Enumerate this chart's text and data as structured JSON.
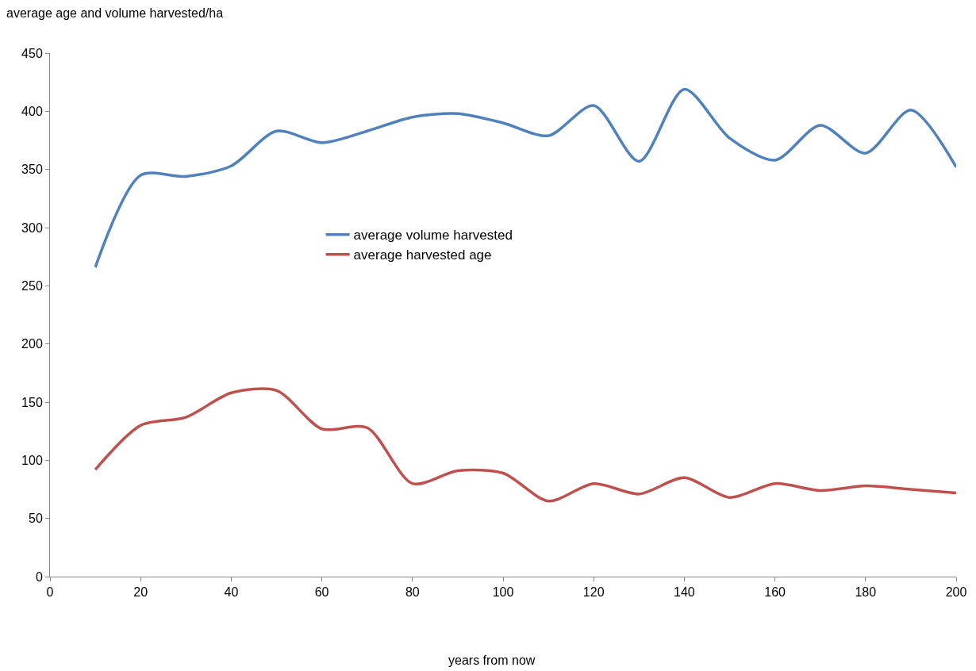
{
  "chart_data": {
    "type": "line",
    "ylabel": "average age and volume harvested/ha",
    "xlabel": "years from now",
    "x": [
      10,
      20,
      30,
      40,
      50,
      60,
      70,
      80,
      90,
      100,
      110,
      120,
      130,
      140,
      150,
      160,
      170,
      180,
      190,
      200
    ],
    "series": [
      {
        "name": "average volume harvested",
        "color": "#4f81bd",
        "values": [
          266,
          345,
          344,
          353,
          383,
          373,
          383,
          395,
          398,
          390,
          379,
          405,
          357,
          419,
          377,
          358,
          388,
          364,
          401,
          352
        ]
      },
      {
        "name": "average harvested age",
        "color": "#c0504d",
        "values": [
          92,
          130,
          137,
          158,
          160,
          127,
          128,
          80,
          91,
          89,
          65,
          80,
          71,
          85,
          68,
          80,
          74,
          78,
          75,
          72
        ]
      }
    ],
    "xlim": [
      0,
      200
    ],
    "xticks": [
      0,
      20,
      40,
      60,
      80,
      100,
      120,
      140,
      160,
      180,
      200
    ],
    "ylim": [
      0,
      450
    ],
    "yticks": [
      0,
      50,
      100,
      150,
      200,
      250,
      300,
      350,
      400,
      450
    ],
    "grid": false,
    "legend": "center",
    "marker": "none",
    "line_style": "solid"
  }
}
